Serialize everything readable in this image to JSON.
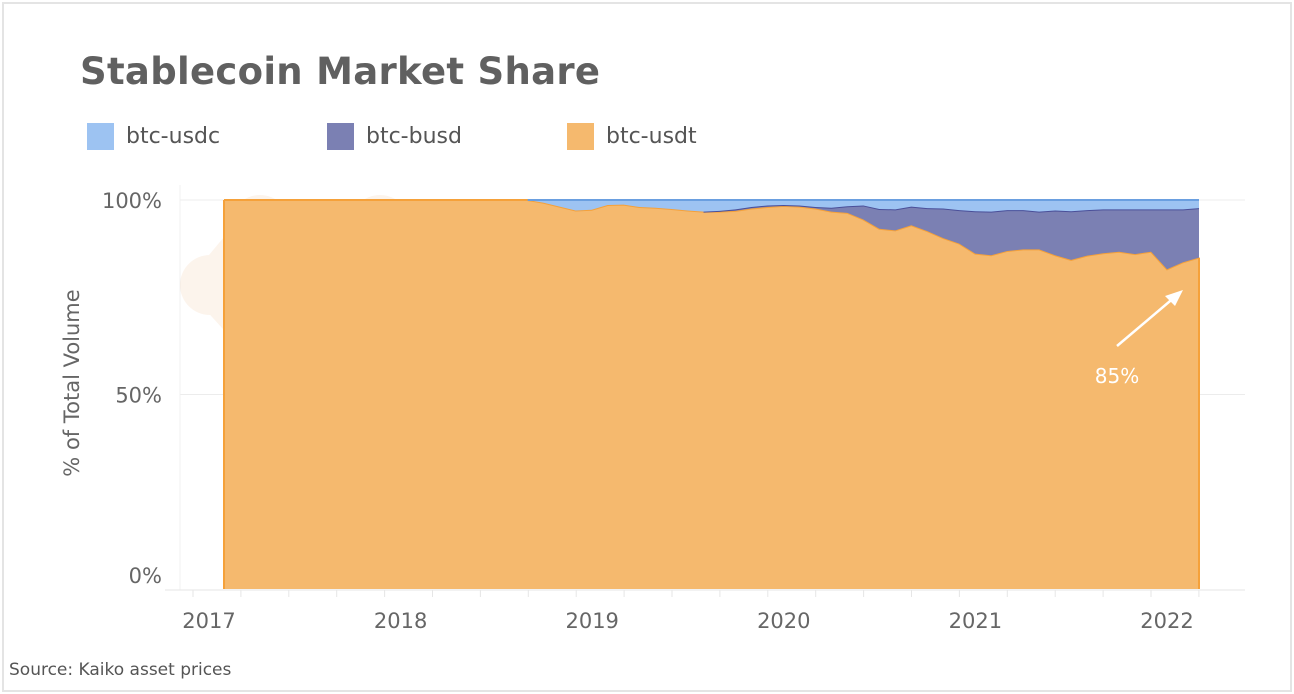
{
  "chart_data": {
    "type": "area",
    "stacked": true,
    "percent": true,
    "title": "Stablecoin Market Share",
    "ylabel": "% of Total Volume",
    "xlabel": "",
    "ylim": [
      0,
      100
    ],
    "yticks": [
      "0%",
      "50%",
      "100%"
    ],
    "yticks_values": [
      0,
      50,
      100
    ],
    "xticks": [
      "2017",
      "2018",
      "2019",
      "2020",
      "2021",
      "2022"
    ],
    "grid": "horizontal",
    "legend": "top-left",
    "source": "Source: Kaiko asset prices",
    "annotation": {
      "text": "85%",
      "points_to": "btc-usdt at 2022-03"
    },
    "x": [
      "2017-02",
      "2017-03",
      "2017-04",
      "2017-05",
      "2017-06",
      "2017-07",
      "2017-08",
      "2017-09",
      "2017-10",
      "2017-11",
      "2017-12",
      "2018-01",
      "2018-02",
      "2018-03",
      "2018-04",
      "2018-05",
      "2018-06",
      "2018-07",
      "2018-08",
      "2018-09",
      "2018-10",
      "2018-11",
      "2018-12",
      "2019-01",
      "2019-02",
      "2019-03",
      "2019-04",
      "2019-05",
      "2019-06",
      "2019-07",
      "2019-08",
      "2019-09",
      "2019-10",
      "2019-11",
      "2019-12",
      "2020-01",
      "2020-02",
      "2020-03",
      "2020-04",
      "2020-05",
      "2020-06",
      "2020-07",
      "2020-08",
      "2020-09",
      "2020-10",
      "2020-11",
      "2020-12",
      "2021-01",
      "2021-02",
      "2021-03",
      "2021-04",
      "2021-05",
      "2021-06",
      "2021-07",
      "2021-08",
      "2021-09",
      "2021-10",
      "2021-11",
      "2021-12",
      "2022-01",
      "2022-02",
      "2022-03"
    ],
    "series": [
      {
        "name": "btc-usdt",
        "color": "#f5b96e",
        "line": "#f5a13a",
        "values": [
          100,
          100,
          100,
          100,
          100,
          100,
          100,
          100,
          100,
          100,
          100,
          100,
          100,
          100,
          100,
          100,
          100,
          100,
          100,
          100,
          99.3,
          98.3,
          97.3,
          97.5,
          98.7,
          98.8,
          98.2,
          98.0,
          97.7,
          97.3,
          97.0,
          97.0,
          97.2,
          97.8,
          98.2,
          98.5,
          98.3,
          97.8,
          97.0,
          96.7,
          95.0,
          92.6,
          92.2,
          93.5,
          92.0,
          90.2,
          88.8,
          86.2,
          85.8,
          86.9,
          87.3,
          87.3,
          85.8,
          84.6,
          85.7,
          86.3,
          86.7,
          86.1,
          86.7,
          82.2,
          84.0,
          85.2
        ]
      },
      {
        "name": "btc-busd",
        "color": "#7b80b3",
        "line": "#4a4f99",
        "values": [
          0,
          0,
          0,
          0,
          0,
          0,
          0,
          0,
          0,
          0,
          0,
          0,
          0,
          0,
          0,
          0,
          0,
          0,
          0,
          0,
          0,
          0,
          0,
          0,
          0,
          0,
          0,
          0,
          0,
          0,
          0,
          0.2,
          0.4,
          0.4,
          0.4,
          0.2,
          0.3,
          0.4,
          1.0,
          1.7,
          3.6,
          5.1,
          5.4,
          4.8,
          5.9,
          7.6,
          8.6,
          10.9,
          11.2,
          10.5,
          10.1,
          9.7,
          11.5,
          12.5,
          11.7,
          11.3,
          10.9,
          11.5,
          10.9,
          15.4,
          13.6,
          12.7
        ]
      },
      {
        "name": "btc-usdc",
        "color": "#9dc3f2",
        "line": "#6a9fe0",
        "values": [
          0,
          0,
          0,
          0,
          0,
          0,
          0,
          0,
          0,
          0,
          0,
          0,
          0,
          0,
          0,
          0,
          0,
          0,
          0,
          0,
          0.7,
          1.7,
          2.7,
          2.5,
          1.3,
          1.2,
          1.8,
          2.0,
          2.3,
          2.7,
          3.0,
          2.8,
          2.4,
          1.8,
          1.4,
          1.3,
          1.4,
          1.8,
          2.0,
          1.6,
          1.4,
          2.3,
          2.4,
          1.7,
          2.1,
          2.2,
          2.6,
          2.9,
          3.0,
          2.6,
          2.6,
          3.0,
          2.7,
          2.9,
          2.6,
          2.4,
          2.4,
          2.4,
          2.4,
          2.4,
          2.4,
          2.1
        ]
      }
    ]
  }
}
